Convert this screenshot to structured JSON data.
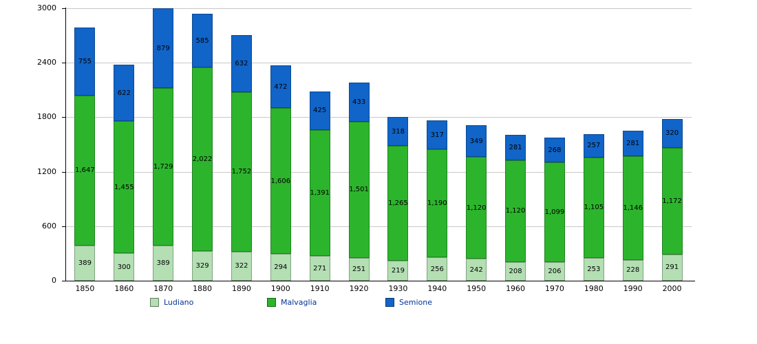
{
  "chart_data": {
    "type": "bar",
    "stacked": true,
    "title": "",
    "xlabel": "",
    "ylabel": "",
    "ylim": [
      0,
      3000
    ],
    "yticks": [
      0,
      600,
      1200,
      1800,
      2400,
      3000
    ],
    "grid": true,
    "legend_position": "bottom",
    "categories": [
      "1850",
      "1860",
      "1870",
      "1880",
      "1890",
      "1900",
      "1910",
      "1920",
      "1930",
      "1940",
      "1950",
      "1960",
      "1970",
      "1980",
      "1990",
      "2000"
    ],
    "series": [
      {
        "name": "Ludiano",
        "color": "#b3dfb3",
        "values": [
          389,
          300,
          389,
          329,
          322,
          294,
          271,
          251,
          219,
          256,
          242,
          208,
          206,
          253,
          228,
          291
        ]
      },
      {
        "name": "Malvaglia",
        "color": "#2cb52c",
        "values": [
          1647,
          1455,
          1729,
          2022,
          1752,
          1606,
          1391,
          1501,
          1265,
          1190,
          1120,
          1120,
          1099,
          1105,
          1146,
          1172
        ]
      },
      {
        "name": "Semione",
        "color": "#1164c8",
        "values": [
          755,
          622,
          879,
          585,
          632,
          472,
          425,
          433,
          318,
          317,
          349,
          281,
          268,
          257,
          281,
          320
        ]
      }
    ],
    "totals": [
      2791,
      2377,
      2997,
      2936,
      2706,
      2372,
      2087,
      2185,
      1802,
      1763,
      1711,
      1609,
      1573,
      1615,
      1655,
      1783
    ]
  }
}
